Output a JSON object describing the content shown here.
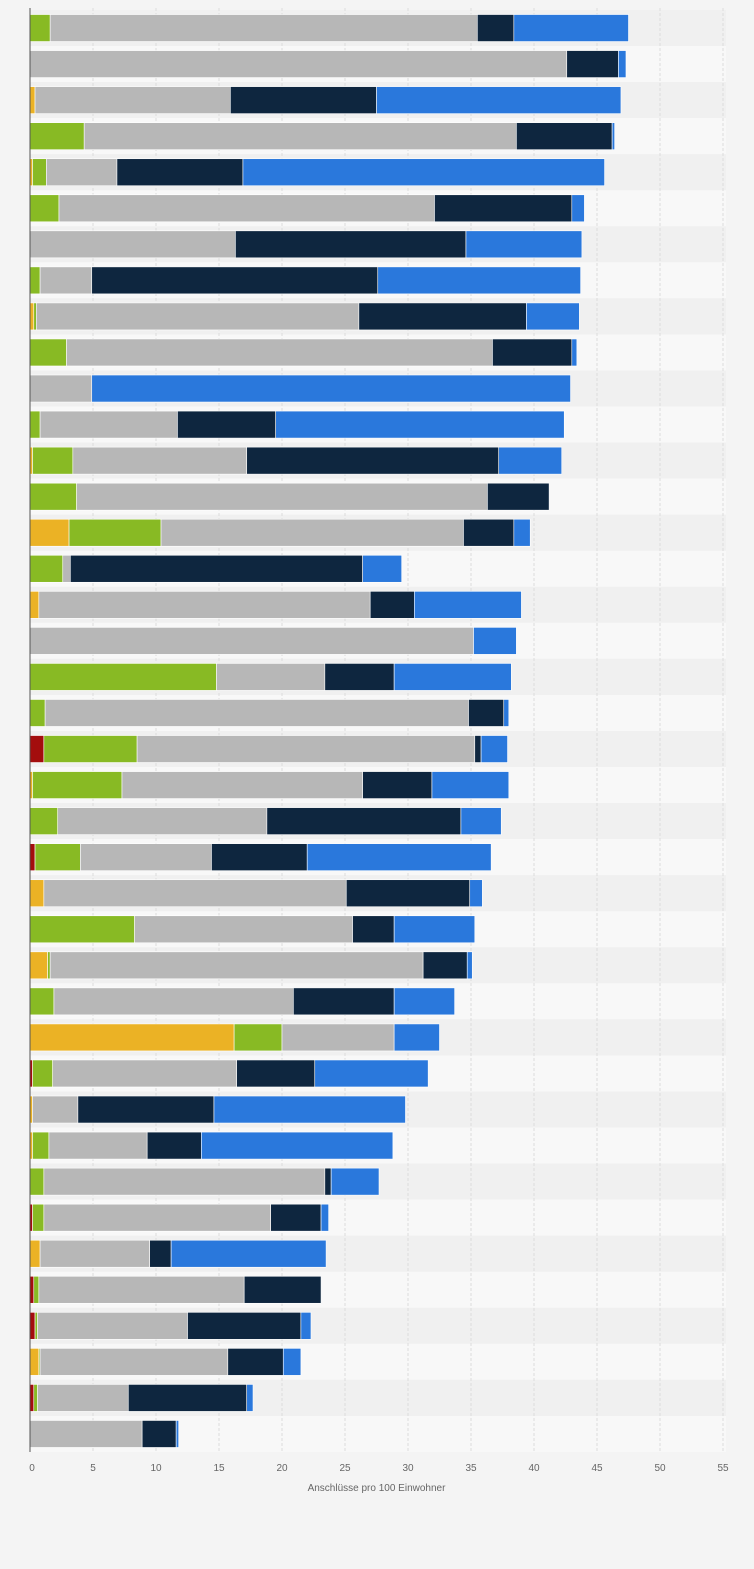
{
  "chart_data": {
    "type": "bar",
    "orientation": "horizontal",
    "stacked": true,
    "title": "",
    "xlabel": "Anschlüsse pro 100 Einwohner",
    "ylabel": "",
    "xlim": [
      0,
      55
    ],
    "xticks": [
      0,
      5,
      10,
      15,
      20,
      25,
      30,
      35,
      40,
      45,
      50,
      55
    ],
    "grid": true,
    "legend": "none",
    "colors": {
      "yellow": "#ebb225",
      "red": "#a30d0d",
      "green": "#88ba24",
      "gray": "#b7b7b7",
      "navy": "#0e263f",
      "blue": "#2a78dc",
      "grid": "#dcdcdc",
      "band_dark": "#f0f0f0",
      "band_light": "#f8f8f8"
    },
    "series_order": [
      "yellow",
      "red",
      "green",
      "gray",
      "navy",
      "blue"
    ],
    "rows": [
      {
        "yellow": 0.0,
        "red": 0.0,
        "green": 1.6,
        "gray": 33.9,
        "navy": 2.9,
        "blue": 9.1
      },
      {
        "yellow": 0.0,
        "red": 0.0,
        "green": 0.0,
        "gray": 42.6,
        "navy": 4.1,
        "blue": 0.6
      },
      {
        "yellow": 0.4,
        "red": 0.0,
        "green": 0.0,
        "gray": 15.5,
        "navy": 11.6,
        "blue": 19.4
      },
      {
        "yellow": 0.0,
        "red": 0.0,
        "green": 4.3,
        "gray": 34.3,
        "navy": 7.6,
        "blue": 0.2
      },
      {
        "yellow": 0.2,
        "red": 0.0,
        "green": 1.1,
        "gray": 5.6,
        "navy": 10.0,
        "blue": 28.7
      },
      {
        "yellow": 0.0,
        "red": 0.0,
        "green": 2.3,
        "gray": 29.8,
        "navy": 10.9,
        "blue": 1.0
      },
      {
        "yellow": 0.0,
        "red": 0.0,
        "green": 0.0,
        "gray": 16.3,
        "navy": 18.3,
        "blue": 9.2
      },
      {
        "yellow": 0.0,
        "red": 0.0,
        "green": 0.8,
        "gray": 4.1,
        "navy": 22.7,
        "blue": 16.1
      },
      {
        "yellow": 0.3,
        "red": 0.0,
        "green": 0.2,
        "gray": 25.6,
        "navy": 13.3,
        "blue": 4.2
      },
      {
        "yellow": 0.0,
        "red": 0.0,
        "green": 2.9,
        "gray": 33.8,
        "navy": 6.3,
        "blue": 0.4
      },
      {
        "yellow": 0.0,
        "red": 0.0,
        "green": 0.0,
        "gray": 4.9,
        "navy": 0.0,
        "blue": 38.0
      },
      {
        "yellow": 0.0,
        "red": 0.0,
        "green": 0.8,
        "gray": 10.9,
        "navy": 7.8,
        "blue": 22.9
      },
      {
        "yellow": 0.2,
        "red": 0.0,
        "green": 3.2,
        "gray": 13.8,
        "navy": 20.0,
        "blue": 5.0
      },
      {
        "yellow": 0.0,
        "red": 0.0,
        "green": 3.7,
        "gray": 32.6,
        "navy": 4.9,
        "blue": 0.0
      },
      {
        "yellow": 3.1,
        "red": 0.0,
        "green": 7.3,
        "gray": 24.0,
        "navy": 4.0,
        "blue": 1.3
      },
      {
        "yellow": 0.0,
        "red": 0.0,
        "green": 2.6,
        "gray": 0.6,
        "navy": 23.2,
        "blue": 3.1
      },
      {
        "yellow": 0.7,
        "red": 0.0,
        "green": 0.0,
        "gray": 26.3,
        "navy": 3.5,
        "blue": 8.5
      },
      {
        "yellow": 0.0,
        "red": 0.0,
        "green": 0.0,
        "gray": 35.2,
        "navy": 0.0,
        "blue": 3.4
      },
      {
        "yellow": 0.0,
        "red": 0.0,
        "green": 14.8,
        "gray": 8.6,
        "navy": 5.5,
        "blue": 9.3
      },
      {
        "yellow": 0.0,
        "red": 0.0,
        "green": 1.2,
        "gray": 33.6,
        "navy": 2.8,
        "blue": 0.4
      },
      {
        "yellow": 0.0,
        "red": 1.1,
        "green": 7.4,
        "gray": 26.8,
        "navy": 0.5,
        "blue": 2.1
      },
      {
        "yellow": 0.2,
        "red": 0.0,
        "green": 7.1,
        "gray": 19.1,
        "navy": 5.5,
        "blue": 6.1
      },
      {
        "yellow": 0.0,
        "red": 0.0,
        "green": 2.2,
        "gray": 16.6,
        "navy": 15.4,
        "blue": 3.2
      },
      {
        "yellow": 0.0,
        "red": 0.4,
        "green": 3.6,
        "gray": 10.4,
        "navy": 7.6,
        "blue": 14.6
      },
      {
        "yellow": 1.1,
        "red": 0.0,
        "green": 0.0,
        "gray": 24.0,
        "navy": 9.8,
        "blue": 1.0
      },
      {
        "yellow": 0.0,
        "red": 0.0,
        "green": 8.3,
        "gray": 17.3,
        "navy": 3.3,
        "blue": 6.4
      },
      {
        "yellow": 1.4,
        "red": 0.0,
        "green": 0.2,
        "gray": 29.6,
        "navy": 3.5,
        "blue": 0.4
      },
      {
        "yellow": 0.0,
        "red": 0.0,
        "green": 1.9,
        "gray": 19.0,
        "navy": 8.0,
        "blue": 4.8
      },
      {
        "yellow": 16.2,
        "red": 0.0,
        "green": 3.8,
        "gray": 8.9,
        "navy": 0.0,
        "blue": 3.6
      },
      {
        "yellow": 0.0,
        "red": 0.2,
        "green": 1.6,
        "gray": 14.6,
        "navy": 6.2,
        "blue": 9.0
      },
      {
        "yellow": 0.2,
        "red": 0.0,
        "green": 0.0,
        "gray": 3.6,
        "navy": 10.8,
        "blue": 15.2
      },
      {
        "yellow": 0.2,
        "red": 0.0,
        "green": 1.3,
        "gray": 7.8,
        "navy": 4.3,
        "blue": 15.2
      },
      {
        "yellow": 0.0,
        "red": 0.0,
        "green": 1.1,
        "gray": 22.3,
        "navy": 0.5,
        "blue": 3.8
      },
      {
        "yellow": 0.0,
        "red": 0.2,
        "green": 0.9,
        "gray": 18.0,
        "navy": 4.0,
        "blue": 0.6
      },
      {
        "yellow": 0.8,
        "red": 0.0,
        "green": 0.0,
        "gray": 8.7,
        "navy": 1.7,
        "blue": 12.3
      },
      {
        "yellow": 0.0,
        "red": 0.3,
        "green": 0.4,
        "gray": 16.3,
        "navy": 6.1,
        "blue": 0.0
      },
      {
        "yellow": 0.0,
        "red": 0.4,
        "green": 0.2,
        "gray": 11.9,
        "navy": 9.0,
        "blue": 0.8
      },
      {
        "yellow": 0.7,
        "red": 0.0,
        "green": 0.1,
        "gray": 14.9,
        "navy": 4.4,
        "blue": 1.4
      },
      {
        "yellow": 0.0,
        "red": 0.3,
        "green": 0.3,
        "gray": 7.2,
        "navy": 9.4,
        "blue": 0.5
      },
      {
        "yellow": 0.0,
        "red": 0.0,
        "green": 0.0,
        "gray": 8.9,
        "navy": 2.7,
        "blue": 0.2
      }
    ]
  }
}
